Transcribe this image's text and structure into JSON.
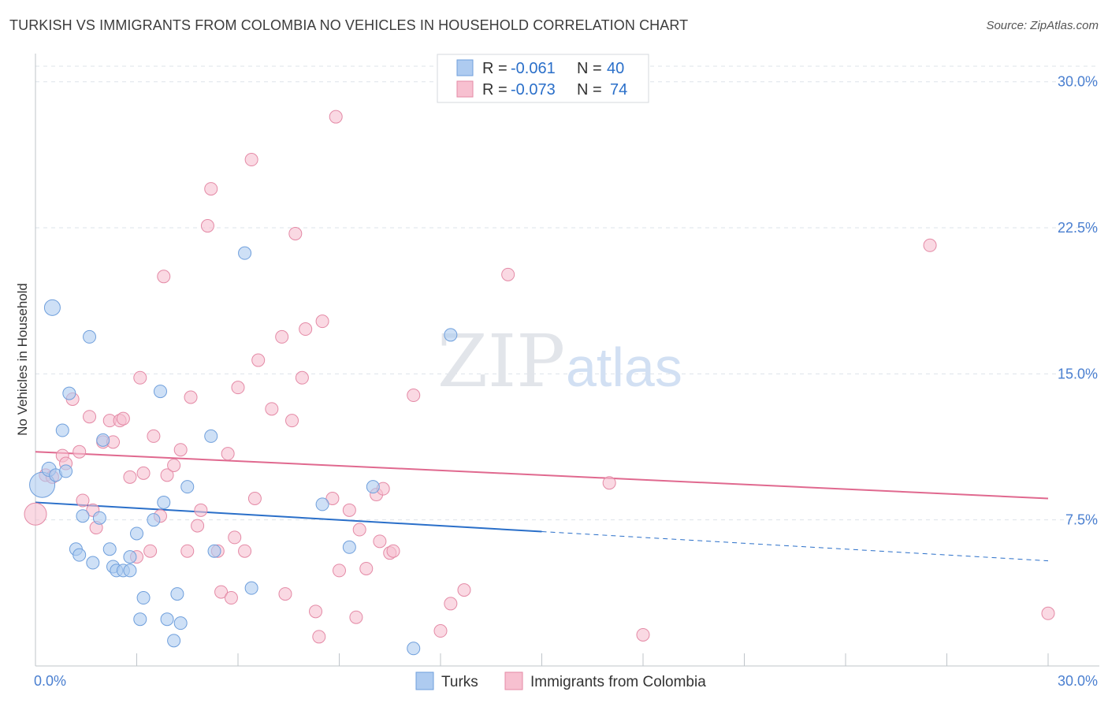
{
  "header": {
    "title": "TURKISH VS IMMIGRANTS FROM COLOMBIA NO VEHICLES IN HOUSEHOLD CORRELATION CHART",
    "source": "Source: ZipAtlas.com"
  },
  "watermark": {
    "zip": "ZIP",
    "atlas": "atlas"
  },
  "colors": {
    "turks_fill": "#aecbf0",
    "turks_stroke": "#6f9fdc",
    "turks_line": "#2a6fc9",
    "colombia_fill": "#f7c0d0",
    "colombia_stroke": "#e48aa6",
    "colombia_line": "#e0698f",
    "grid": "#dde3ea",
    "tick_text": "#4a7fd0"
  },
  "legend": {
    "rows": [
      {
        "r_label": "R = ",
        "r_value": "-0.061",
        "n_label": "N = ",
        "n_value": "40"
      },
      {
        "r_label": "R = ",
        "r_value": "-0.073",
        "n_label": "N = ",
        "n_value": "74"
      }
    ]
  },
  "bottom_legend": [
    "Turks",
    "Immigrants from Colombia"
  ],
  "chart_data": {
    "type": "scatter",
    "xlabel": "",
    "ylabel": "No Vehicles in Household",
    "xlim": [
      0,
      30
    ],
    "ylim": [
      0,
      31
    ],
    "x_tick_labels": [
      {
        "value": 0,
        "label": "0.0%"
      },
      {
        "value": 30,
        "label": "30.0%"
      }
    ],
    "y_tick_labels": [
      {
        "value": 7.5,
        "label": "7.5%"
      },
      {
        "value": 15,
        "label": "15.0%"
      },
      {
        "value": 22.5,
        "label": "22.5%"
      },
      {
        "value": 30,
        "label": "30.0%"
      }
    ],
    "grid": true,
    "legend_position": "top-center",
    "series": [
      {
        "name": "Turks",
        "r": -0.061,
        "n": 40,
        "trend": {
          "x0": 0,
          "y0": 8.4,
          "x1": 15,
          "y1": 6.9,
          "dash_to_x": 30,
          "dash_to_y": 5.4
        },
        "points": [
          [
            0.2,
            9.3,
            16
          ],
          [
            0.5,
            18.4,
            10
          ],
          [
            0.4,
            10.1,
            9
          ],
          [
            0.6,
            9.8,
            8
          ],
          [
            0.8,
            12.1,
            8
          ],
          [
            0.9,
            10.0,
            8
          ],
          [
            1.0,
            14.0,
            8
          ],
          [
            1.2,
            6.0,
            8
          ],
          [
            1.3,
            5.7,
            8
          ],
          [
            1.4,
            7.7,
            8
          ],
          [
            1.6,
            16.9,
            8
          ],
          [
            1.7,
            5.3,
            8
          ],
          [
            1.9,
            7.6,
            8
          ],
          [
            2.0,
            11.6,
            8
          ],
          [
            2.2,
            6.0,
            8
          ],
          [
            2.3,
            5.1,
            8
          ],
          [
            2.4,
            4.9,
            8
          ],
          [
            2.6,
            4.9,
            8
          ],
          [
            2.8,
            4.9,
            8
          ],
          [
            2.8,
            5.6,
            8
          ],
          [
            3.0,
            6.8,
            8
          ],
          [
            3.2,
            3.5,
            8
          ],
          [
            3.1,
            2.4,
            8
          ],
          [
            3.5,
            7.5,
            8
          ],
          [
            3.7,
            14.1,
            8
          ],
          [
            3.8,
            8.4,
            8
          ],
          [
            3.9,
            2.4,
            8
          ],
          [
            4.1,
            1.3,
            8
          ],
          [
            4.2,
            3.7,
            8
          ],
          [
            4.3,
            2.2,
            8
          ],
          [
            4.5,
            9.2,
            8
          ],
          [
            5.2,
            11.8,
            8
          ],
          [
            5.3,
            5.9,
            8
          ],
          [
            6.2,
            21.2,
            8
          ],
          [
            6.4,
            4.0,
            8
          ],
          [
            8.5,
            8.3,
            8
          ],
          [
            9.3,
            6.1,
            8
          ],
          [
            10.0,
            9.2,
            8
          ],
          [
            11.2,
            0.9,
            8
          ],
          [
            12.3,
            17.0,
            8
          ]
        ]
      },
      {
        "name": "Immigrants from Colombia",
        "r": -0.073,
        "n": 74,
        "trend": {
          "x0": 0,
          "y0": 11.0,
          "x1": 30,
          "y1": 8.6
        },
        "points": [
          [
            0.0,
            7.8,
            14
          ],
          [
            0.3,
            9.8,
            8
          ],
          [
            0.5,
            9.7,
            8
          ],
          [
            0.8,
            10.8,
            8
          ],
          [
            0.9,
            10.4,
            8
          ],
          [
            1.1,
            13.7,
            8
          ],
          [
            1.3,
            11.0,
            8
          ],
          [
            1.4,
            8.5,
            8
          ],
          [
            1.6,
            12.8,
            8
          ],
          [
            1.7,
            8.0,
            8
          ],
          [
            1.8,
            7.1,
            8
          ],
          [
            2.0,
            11.5,
            8
          ],
          [
            2.2,
            12.6,
            8
          ],
          [
            2.3,
            11.5,
            8
          ],
          [
            2.5,
            12.6,
            8
          ],
          [
            2.6,
            12.7,
            8
          ],
          [
            2.8,
            9.7,
            8
          ],
          [
            3.0,
            5.6,
            8
          ],
          [
            3.1,
            14.8,
            8
          ],
          [
            3.2,
            9.9,
            8
          ],
          [
            3.4,
            5.9,
            8
          ],
          [
            3.5,
            11.8,
            8
          ],
          [
            3.7,
            7.7,
            8
          ],
          [
            3.8,
            20.0,
            8
          ],
          [
            3.9,
            9.8,
            8
          ],
          [
            4.1,
            10.3,
            8
          ],
          [
            4.3,
            11.1,
            8
          ],
          [
            4.5,
            5.9,
            8
          ],
          [
            4.6,
            13.8,
            8
          ],
          [
            4.8,
            7.2,
            8
          ],
          [
            4.9,
            8.0,
            8
          ],
          [
            5.1,
            22.6,
            8
          ],
          [
            5.2,
            24.5,
            8
          ],
          [
            5.4,
            5.9,
            8
          ],
          [
            5.5,
            3.8,
            8
          ],
          [
            5.7,
            10.9,
            8
          ],
          [
            5.8,
            3.5,
            8
          ],
          [
            5.9,
            6.6,
            8
          ],
          [
            6.0,
            14.3,
            8
          ],
          [
            6.2,
            5.9,
            8
          ],
          [
            6.4,
            26.0,
            8
          ],
          [
            6.5,
            8.6,
            8
          ],
          [
            6.6,
            15.7,
            8
          ],
          [
            7.0,
            13.2,
            8
          ],
          [
            7.3,
            16.9,
            8
          ],
          [
            7.4,
            3.7,
            8
          ],
          [
            7.6,
            12.6,
            8
          ],
          [
            7.7,
            22.2,
            8
          ],
          [
            7.9,
            14.8,
            8
          ],
          [
            8.0,
            17.3,
            8
          ],
          [
            8.3,
            2.8,
            8
          ],
          [
            8.4,
            1.5,
            8
          ],
          [
            8.5,
            17.7,
            8
          ],
          [
            8.8,
            8.6,
            8
          ],
          [
            8.9,
            28.2,
            8
          ],
          [
            9.0,
            4.9,
            8
          ],
          [
            9.3,
            8.0,
            8
          ],
          [
            9.5,
            2.5,
            8
          ],
          [
            9.6,
            7.0,
            8
          ],
          [
            9.8,
            5.0,
            8
          ],
          [
            10.1,
            8.8,
            8
          ],
          [
            10.2,
            6.4,
            8
          ],
          [
            10.3,
            9.1,
            8
          ],
          [
            10.5,
            5.8,
            8
          ],
          [
            10.6,
            5.9,
            8
          ],
          [
            11.2,
            13.9,
            8
          ],
          [
            12.0,
            1.8,
            8
          ],
          [
            12.7,
            3.9,
            8
          ],
          [
            14.0,
            20.1,
            8
          ],
          [
            17.0,
            9.4,
            8
          ],
          [
            18.0,
            1.6,
            8
          ],
          [
            26.5,
            21.6,
            8
          ],
          [
            30.0,
            2.7,
            8
          ],
          [
            12.3,
            3.2,
            8
          ]
        ]
      }
    ]
  }
}
